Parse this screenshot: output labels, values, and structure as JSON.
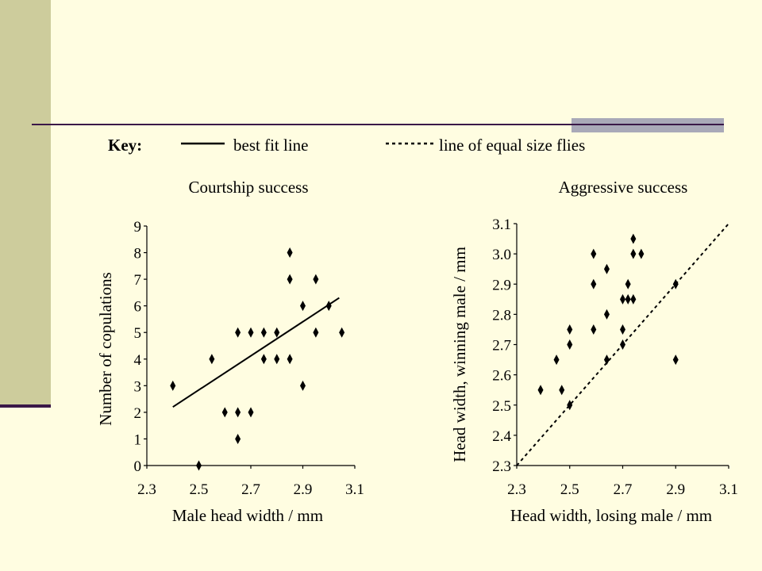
{
  "key": {
    "label": "Key:",
    "solid_label": "best fit line",
    "dashed_label": "line of equal size flies"
  },
  "chart_data": [
    {
      "type": "scatter",
      "title": "Courtship success",
      "xlabel": "Male head width / mm",
      "ylabel": "Number of copulations",
      "xlim": [
        2.3,
        3.1
      ],
      "ylim": [
        0,
        9
      ],
      "xticks": [
        "2.3",
        "2.5",
        "2.7",
        "2.9",
        "3.1"
      ],
      "yticks": [
        "0",
        "1",
        "2",
        "3",
        "4",
        "5",
        "6",
        "7",
        "8",
        "9"
      ],
      "points": [
        [
          2.4,
          3
        ],
        [
          2.5,
          0
        ],
        [
          2.55,
          4
        ],
        [
          2.6,
          2
        ],
        [
          2.65,
          2
        ],
        [
          2.65,
          1
        ],
        [
          2.65,
          5
        ],
        [
          2.7,
          5
        ],
        [
          2.7,
          2
        ],
        [
          2.75,
          5
        ],
        [
          2.75,
          4
        ],
        [
          2.8,
          5
        ],
        [
          2.8,
          4
        ],
        [
          2.85,
          8
        ],
        [
          2.85,
          7
        ],
        [
          2.85,
          4
        ],
        [
          2.9,
          6
        ],
        [
          2.9,
          3
        ],
        [
          2.95,
          7
        ],
        [
          2.95,
          5
        ],
        [
          3.0,
          6
        ],
        [
          3.05,
          5
        ]
      ],
      "fit_line": {
        "style": "solid",
        "from": [
          2.4,
          2.2
        ],
        "to": [
          3.04,
          6.3
        ]
      },
      "grid": false
    },
    {
      "type": "scatter",
      "title": "Aggressive success",
      "xlabel": "Head width, losing male / mm",
      "ylabel": "Head width, winning male / mm",
      "xlim": [
        2.3,
        3.1
      ],
      "ylim": [
        2.3,
        3.1
      ],
      "xticks": [
        "2.3",
        "2.5",
        "2.7",
        "2.9",
        "3.1"
      ],
      "yticks": [
        "2.3",
        "2.4",
        "2.5",
        "2.6",
        "2.7",
        "2.8",
        "2.9",
        "3.0",
        "3.1"
      ],
      "points": [
        [
          2.39,
          2.55
        ],
        [
          2.45,
          2.65
        ],
        [
          2.47,
          2.55
        ],
        [
          2.5,
          2.75
        ],
        [
          2.5,
          2.7
        ],
        [
          2.5,
          2.5
        ],
        [
          2.59,
          3.0
        ],
        [
          2.59,
          2.9
        ],
        [
          2.59,
          2.75
        ],
        [
          2.64,
          2.95
        ],
        [
          2.64,
          2.8
        ],
        [
          2.64,
          2.65
        ],
        [
          2.7,
          2.85
        ],
        [
          2.7,
          2.75
        ],
        [
          2.7,
          2.7
        ],
        [
          2.72,
          2.9
        ],
        [
          2.72,
          2.85
        ],
        [
          2.74,
          3.05
        ],
        [
          2.74,
          3.0
        ],
        [
          2.74,
          2.85
        ],
        [
          2.77,
          3.0
        ],
        [
          2.9,
          2.9
        ],
        [
          2.9,
          2.65
        ]
      ],
      "reference_line": {
        "style": "dashed",
        "from": [
          2.3,
          2.3
        ],
        "to": [
          3.1,
          3.1
        ]
      },
      "grid": false
    }
  ]
}
